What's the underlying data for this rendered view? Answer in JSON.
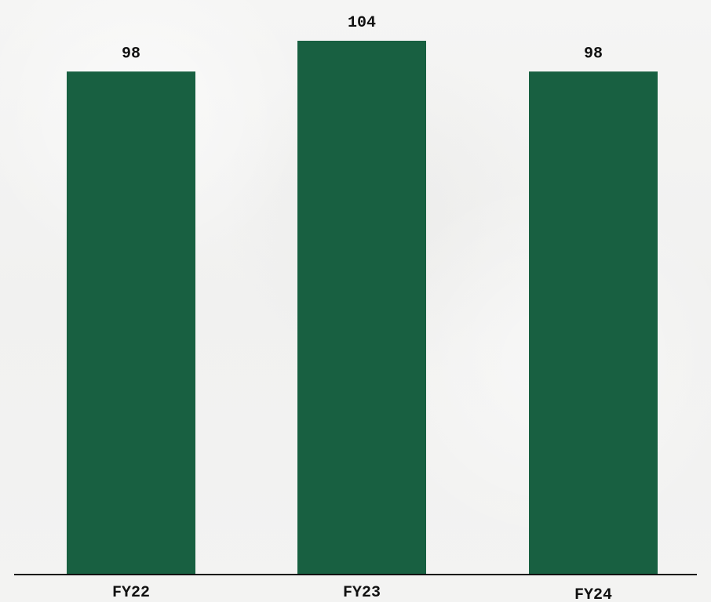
{
  "chart_data": {
    "type": "bar",
    "categories": [
      "FY22",
      "FY23",
      "FY24"
    ],
    "values": [
      98,
      104,
      98
    ],
    "data_labels": [
      "98",
      "104",
      "98"
    ],
    "title": "",
    "xlabel": "",
    "ylabel": "",
    "ylim": [
      0,
      104
    ],
    "grid": false,
    "legend": "none",
    "colors": {
      "bar": "#186041",
      "axis": "#111111",
      "text": "#111111",
      "background": "#f3f3f2"
    }
  }
}
